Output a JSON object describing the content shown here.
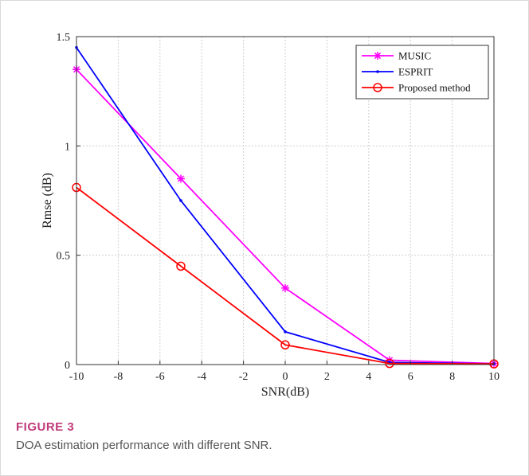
{
  "figure": {
    "label": "FIGURE 3",
    "caption": "DOA estimation performance with different SNR."
  },
  "chart_data": {
    "type": "line",
    "xlabel": "SNR(dB)",
    "ylabel": "Rmse (dB)",
    "xlim": [
      -10,
      10
    ],
    "ylim": [
      0,
      1.5
    ],
    "xticks": [
      -10,
      -8,
      -6,
      -4,
      -2,
      0,
      2,
      4,
      6,
      8,
      10
    ],
    "yticks": [
      0,
      0.5,
      1,
      1.5
    ],
    "ytick_labels": [
      "0",
      "0.5",
      "1",
      "1.5"
    ],
    "grid": true,
    "legend_position": "top-right",
    "x": [
      -10,
      -5,
      0,
      5,
      10
    ],
    "series": [
      {
        "name": "MUSIC",
        "color": "#ff00ff",
        "marker": "asterisk",
        "values": [
          1.35,
          0.85,
          0.35,
          0.02,
          0.005
        ]
      },
      {
        "name": "ESPRIT",
        "color": "#0000ff",
        "marker": "point",
        "values": [
          1.45,
          0.75,
          0.15,
          0.01,
          0.003
        ]
      },
      {
        "name": "Proposed method",
        "color": "#ff0000",
        "marker": "circle",
        "values": [
          0.81,
          0.45,
          0.09,
          0.005,
          0.003
        ]
      }
    ]
  }
}
